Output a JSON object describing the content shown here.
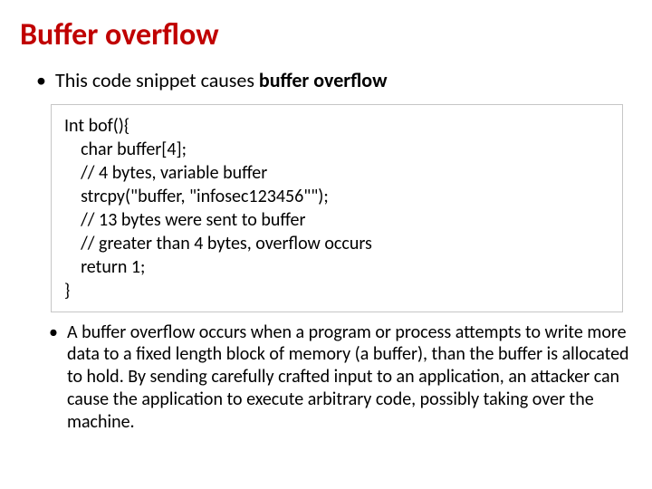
{
  "title": "Buffer overflow",
  "title_color": "#c00000",
  "bullet1_prefix": "This code snippet causes ",
  "bullet1_bold": "buffer overflow",
  "code": {
    "l0": "Int bof(){",
    "l1": "    char buffer[4];",
    "l2": "    // 4 bytes, variable buffer",
    "l3": "    strcpy(\"buffer, \"infosec123456\"\");",
    "l4": "    // 13 bytes were sent to buffer",
    "l5": "    // greater than 4 bytes, overflow occurs",
    "l6": "    return 1;",
    "l7": "}"
  },
  "bullet2": "A buffer overflow occurs when a program or process attempts to write more data to a fixed length block of memory (a buffer), than the buffer is allocated to hold. By sending carefully crafted input to an application, an attacker can cause the application to execute arbitrary code, possibly taking over the machine.",
  "font_main": "Calibri, Arial, sans-serif",
  "background_color": "#ffffff",
  "code_border_color": "#c6c6c6",
  "title_fontsize": 34,
  "body_fontsize": 22,
  "code_fontsize": 20,
  "sub_bullet_fontsize": 20
}
